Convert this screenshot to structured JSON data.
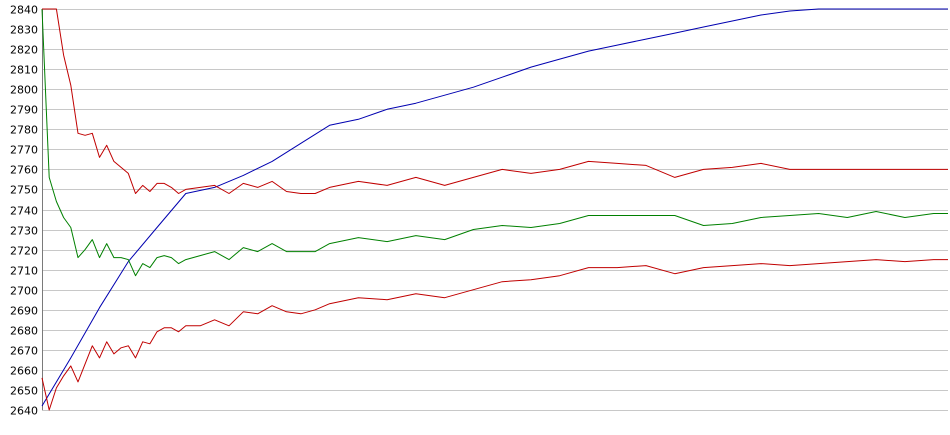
{
  "chart_data": {
    "type": "line",
    "title": "",
    "xlabel": "",
    "ylabel": "",
    "ylim": [
      2640,
      2840
    ],
    "yticks": [
      2640,
      2650,
      2660,
      2670,
      2680,
      2690,
      2700,
      2710,
      2720,
      2730,
      2740,
      2750,
      2760,
      2770,
      2780,
      2790,
      2800,
      2810,
      2820,
      2830,
      2840
    ],
    "xlim": [
      0,
      126
    ],
    "grid": true,
    "legend": "none",
    "series": [
      {
        "color": "#0000b0",
        "x": [
          0,
          4,
          8,
          12,
          16,
          20,
          24,
          28,
          32,
          36,
          40,
          44,
          48,
          52,
          56,
          60,
          64,
          68,
          72,
          76,
          80,
          84,
          88,
          92,
          96,
          100,
          104,
          108,
          112,
          116,
          120,
          124,
          126
        ],
        "values": [
          2642,
          2666,
          2691,
          2714,
          2731,
          2748,
          2751,
          2757,
          2764,
          2773,
          2782,
          2785,
          2790,
          2793,
          2797,
          2801,
          2806,
          2811,
          2815,
          2819,
          2822,
          2825,
          2828,
          2831,
          2834,
          2837,
          2839,
          2840,
          2840,
          2840,
          2840,
          2840,
          2840
        ]
      },
      {
        "color": "#008000",
        "x": [
          0,
          1,
          2,
          3,
          4,
          5,
          6,
          7,
          8,
          9,
          10,
          11,
          12,
          13,
          14,
          15,
          16,
          17,
          18,
          19,
          20,
          22,
          24,
          26,
          28,
          30,
          32,
          34,
          36,
          38,
          40,
          44,
          48,
          52,
          56,
          60,
          64,
          68,
          72,
          76,
          80,
          84,
          88,
          92,
          96,
          100,
          104,
          108,
          112,
          116,
          120,
          124,
          126
        ],
        "values": [
          2840,
          2756,
          2744,
          2736,
          2731,
          2716,
          2720,
          2725,
          2716,
          2723,
          2716,
          2716,
          2715,
          2707,
          2713,
          2711,
          2716,
          2717,
          2716,
          2713,
          2715,
          2717,
          2719,
          2715,
          2721,
          2719,
          2723,
          2719,
          2719,
          2719,
          2723,
          2726,
          2724,
          2727,
          2725,
          2730,
          2732,
          2731,
          2733,
          2737,
          2737,
          2737,
          2737,
          2732,
          2733,
          2736,
          2737,
          2738,
          2736,
          2739,
          2736,
          2738,
          2738
        ]
      },
      {
        "color": "#c00000",
        "x": [
          0,
          1,
          2,
          3,
          4,
          5,
          6,
          7,
          8,
          9,
          10,
          11,
          12,
          13,
          14,
          15,
          16,
          17,
          18,
          19,
          20,
          22,
          24,
          26,
          28,
          30,
          32,
          34,
          36,
          38,
          40,
          44,
          48,
          52,
          56,
          60,
          64,
          68,
          72,
          76,
          80,
          84,
          88,
          92,
          96,
          100,
          104,
          108,
          112,
          116,
          120,
          124,
          126
        ],
        "values": [
          2840,
          2840,
          2840,
          2817,
          2802,
          2778,
          2777,
          2778,
          2766,
          2772,
          2764,
          2761,
          2758,
          2748,
          2752,
          2749,
          2753,
          2753,
          2751,
          2748,
          2750,
          2751,
          2752,
          2748,
          2753,
          2751,
          2754,
          2749,
          2748,
          2748,
          2751,
          2754,
          2752,
          2756,
          2752,
          2756,
          2760,
          2758,
          2760,
          2764,
          2763,
          2762,
          2756,
          2760,
          2761,
          2763,
          2760,
          2760,
          2760,
          2760,
          2760,
          2760,
          2760
        ]
      },
      {
        "color": "#c00000",
        "x": [
          0,
          1,
          2,
          3,
          4,
          5,
          6,
          7,
          8,
          9,
          10,
          11,
          12,
          13,
          14,
          15,
          16,
          17,
          18,
          19,
          20,
          22,
          24,
          26,
          28,
          30,
          32,
          34,
          36,
          38,
          40,
          44,
          48,
          52,
          56,
          60,
          64,
          68,
          72,
          76,
          80,
          84,
          88,
          92,
          96,
          100,
          104,
          108,
          112,
          116,
          120,
          124,
          126
        ],
        "values": [
          2656,
          2640,
          2651,
          2657,
          2662,
          2654,
          2663,
          2672,
          2666,
          2674,
          2668,
          2671,
          2672,
          2666,
          2674,
          2673,
          2679,
          2681,
          2681,
          2679,
          2682,
          2682,
          2685,
          2682,
          2689,
          2688,
          2692,
          2689,
          2688,
          2690,
          2693,
          2696,
          2695,
          2698,
          2696,
          2700,
          2704,
          2705,
          2707,
          2711,
          2711,
          2712,
          2708,
          2711,
          2712,
          2713,
          2712,
          2713,
          2714,
          2715,
          2714,
          2715,
          2715
        ]
      }
    ]
  }
}
